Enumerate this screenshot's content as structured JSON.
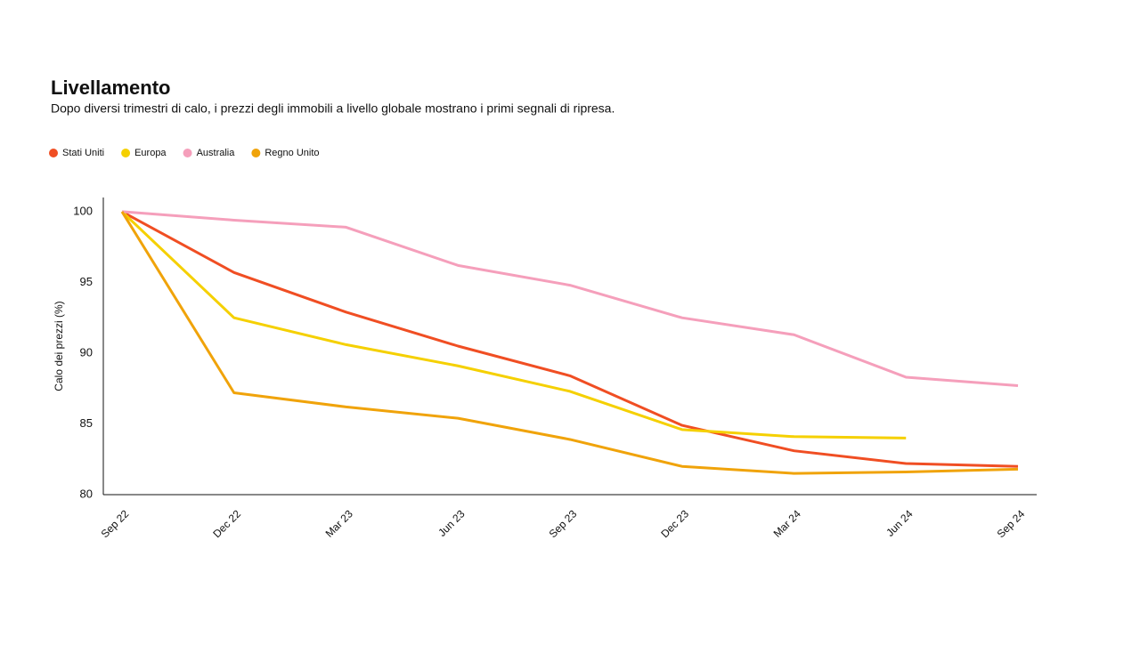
{
  "chart_data": {
    "type": "line",
    "title": "Livellamento",
    "subtitle": "Dopo diversi trimestri di calo, i prezzi degli immobili a livello globale mostrano i primi segnali di ripresa.",
    "y_label": "Calo dei prezzi (%)",
    "categories": [
      "Sep 22",
      "Dec 22",
      "Mar 23",
      "Jun 23",
      "Sep 23",
      "Dec 23",
      "Mar 24",
      "Jun 24",
      "Sep 24"
    ],
    "series": [
      {
        "name": "Stati Uniti",
        "color": "#f04e23",
        "values": [
          100,
          95.7,
          92.9,
          90.5,
          88.4,
          84.9,
          83.1,
          82.2,
          82.0
        ]
      },
      {
        "name": "Europa",
        "color": "#f5d000",
        "values": [
          100,
          92.5,
          90.6,
          89.1,
          87.3,
          84.6,
          84.1,
          84.0,
          null
        ]
      },
      {
        "name": "Australia",
        "color": "#f59fbb",
        "values": [
          100,
          99.4,
          98.9,
          96.2,
          94.8,
          92.5,
          91.3,
          88.3,
          87.7
        ]
      },
      {
        "name": "Regno Unito",
        "color": "#f0a30a",
        "values": [
          100,
          87.2,
          86.2,
          85.4,
          83.9,
          82.0,
          81.5,
          81.6,
          81.8
        ]
      }
    ],
    "ylim": [
      80,
      101
    ],
    "yticks": [
      80,
      85,
      90,
      95,
      100
    ],
    "legend": "top-left"
  }
}
